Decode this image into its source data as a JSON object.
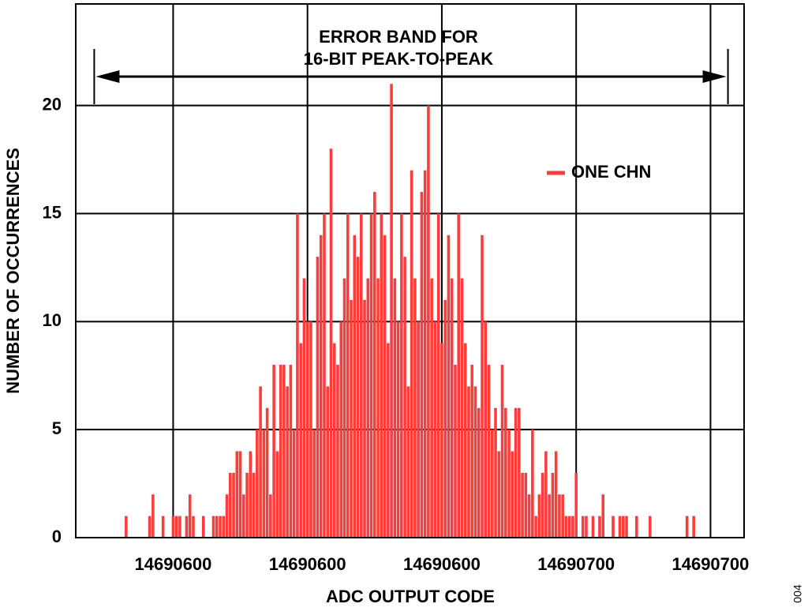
{
  "chart_data": {
    "type": "bar",
    "annotation": [
      "ERROR BAND FOR",
      "16-BIT PEAK-TO-PEAK"
    ],
    "error_band": [
      14690531.5,
      14690720.2
    ],
    "xlabel": "ADC OUTPUT CODE",
    "ylabel": "NUMBER OF OCCURRENCES",
    "figure_id": "004",
    "xlim": [
      14690526,
      14690725
    ],
    "xticks": [
      {
        "value": 14690555,
        "label": "14690600"
      },
      {
        "value": 14690595,
        "label": "14690600"
      },
      {
        "value": 14690635,
        "label": "14690600"
      },
      {
        "value": 14690675,
        "label": "14690700"
      },
      {
        "value": 14690715,
        "label": "14690700"
      }
    ],
    "ylim": [
      0,
      24.7
    ],
    "yticks": [
      0,
      5,
      10,
      15,
      20
    ],
    "grid": true,
    "x": [
      14690541,
      14690542,
      14690543,
      14690544,
      14690545,
      14690546,
      14690547,
      14690548,
      14690549,
      14690550,
      14690551,
      14690552,
      14690553,
      14690554,
      14690555,
      14690556,
      14690557,
      14690558,
      14690559,
      14690560,
      14690561,
      14690562,
      14690563,
      14690564,
      14690565,
      14690566,
      14690567,
      14690568,
      14690569,
      14690570,
      14690571,
      14690572,
      14690573,
      14690574,
      14690575,
      14690576,
      14690577,
      14690578,
      14690579,
      14690580,
      14690581,
      14690582,
      14690583,
      14690584,
      14690585,
      14690586,
      14690587,
      14690588,
      14690589,
      14690590,
      14690591,
      14690592,
      14690593,
      14690594,
      14690595,
      14690596,
      14690597,
      14690598,
      14690599,
      14690600,
      14690601,
      14690602,
      14690603,
      14690604,
      14690605,
      14690606,
      14690607,
      14690608,
      14690609,
      14690610,
      14690611,
      14690612,
      14690613,
      14690614,
      14690615,
      14690616,
      14690617,
      14690618,
      14690619,
      14690620,
      14690621,
      14690622,
      14690623,
      14690624,
      14690625,
      14690626,
      14690627,
      14690628,
      14690629,
      14690630,
      14690631,
      14690632,
      14690633,
      14690634,
      14690635,
      14690636,
      14690637,
      14690638,
      14690639,
      14690640,
      14690641,
      14690642,
      14690643,
      14690644,
      14690645,
      14690646,
      14690647,
      14690648,
      14690649,
      14690650,
      14690651,
      14690652,
      14690653,
      14690654,
      14690655,
      14690656,
      14690657,
      14690658,
      14690659,
      14690660,
      14690661,
      14690662,
      14690663,
      14690664,
      14690665,
      14690666,
      14690667,
      14690668,
      14690669,
      14690670,
      14690671,
      14690672,
      14690673,
      14690674,
      14690675,
      14690676,
      14690677,
      14690678,
      14690679,
      14690680,
      14690681,
      14690682,
      14690683,
      14690684,
      14690685,
      14690686,
      14690687,
      14690688,
      14690689,
      14690690,
      14690691,
      14690692,
      14690693,
      14690694,
      14690695,
      14690696,
      14690697,
      14690698,
      14690699,
      14690700,
      14690701,
      14690702,
      14690703,
      14690704,
      14690705,
      14690706,
      14690707,
      14690708,
      14690709,
      14690710,
      14690711
    ],
    "series": [
      {
        "name": "ONE CHN",
        "color": "#ff3b3b",
        "values": [
          1,
          0,
          0,
          0,
          0,
          0,
          0,
          1,
          2,
          0,
          0,
          1,
          0,
          0,
          1,
          1,
          1,
          0,
          1,
          2,
          1,
          0,
          0,
          1,
          0,
          0,
          1,
          1,
          1,
          1,
          2,
          3,
          3,
          4,
          4,
          2,
          3,
          4,
          3,
          5,
          7,
          5,
          6,
          2,
          8,
          4,
          8,
          8,
          7,
          8,
          5,
          15,
          9,
          12,
          10,
          10,
          5,
          13,
          14,
          15,
          7,
          18,
          9,
          8,
          10,
          12,
          15,
          11,
          14,
          13,
          15,
          11,
          12,
          15,
          16,
          12,
          15,
          14,
          9,
          21,
          12,
          10,
          15,
          13,
          7,
          17,
          12,
          10,
          16,
          17,
          20,
          12,
          10,
          15,
          9,
          11,
          14,
          12,
          8,
          15,
          12,
          9,
          7,
          8,
          7,
          6,
          14,
          10,
          8,
          5,
          6,
          4,
          8,
          6,
          5,
          4,
          6,
          6,
          3,
          3,
          2,
          5,
          1,
          2,
          3,
          4,
          2,
          3,
          4,
          2,
          2,
          1,
          1,
          1,
          3,
          0,
          1,
          1,
          0,
          1,
          0,
          1,
          2,
          0,
          0,
          1,
          0,
          1,
          1,
          1,
          0,
          0,
          1,
          0,
          0,
          0,
          1,
          0,
          0,
          0,
          0,
          0,
          0,
          0,
          0,
          0,
          0,
          1,
          0,
          1,
          0
        ]
      }
    ]
  }
}
